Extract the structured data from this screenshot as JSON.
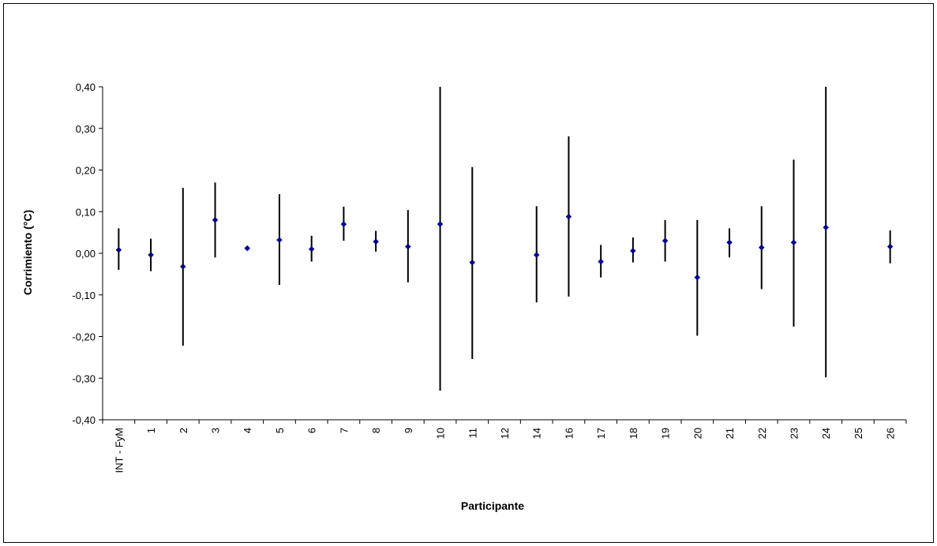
{
  "chart_data": {
    "type": "scatter",
    "xlabel": "Participante",
    "ylabel": "Corrimiento (°C)",
    "categories": [
      "INT - FyM",
      "1",
      "2",
      "3",
      "4",
      "5",
      "6",
      "7",
      "8",
      "9",
      "10",
      "11",
      "12",
      "14",
      "16",
      "17",
      "18",
      "19",
      "20",
      "21",
      "22",
      "23",
      "24",
      "25",
      "26"
    ],
    "ylim": [
      -0.4,
      0.4
    ],
    "yticks": [
      "-0,40",
      "-0,30",
      "-0,20",
      "-0,10",
      "0,00",
      "0,10",
      "0,20",
      "0,30",
      "0,40"
    ],
    "series": [
      {
        "values": [
          0.008,
          -0.004,
          -0.032,
          0.08,
          0.012,
          0.032,
          0.01,
          0.07,
          0.028,
          0.016,
          0.07,
          -0.022,
          null,
          -0.004,
          0.088,
          -0.02,
          0.006,
          0.03,
          -0.058,
          0.026,
          0.014,
          0.026,
          0.062,
          null,
          0.016
        ],
        "err_low": [
          -0.04,
          -0.043,
          -0.222,
          -0.01,
          0.012,
          -0.076,
          -0.02,
          0.03,
          0.004,
          -0.07,
          -0.33,
          -0.254,
          null,
          -0.118,
          -0.104,
          -0.058,
          -0.022,
          -0.02,
          -0.198,
          -0.01,
          -0.086,
          -0.176,
          -0.298,
          null,
          -0.024
        ],
        "err_high": [
          0.06,
          0.035,
          0.157,
          0.17,
          0.012,
          0.142,
          0.042,
          0.112,
          0.054,
          0.104,
          0.4,
          0.207,
          null,
          0.113,
          0.281,
          0.02,
          0.038,
          0.08,
          0.08,
          0.06,
          0.113,
          0.225,
          0.4,
          null,
          0.055
        ]
      }
    ],
    "marker_color": "#00008b",
    "errorbar_color": "#000000",
    "grid": false
  }
}
